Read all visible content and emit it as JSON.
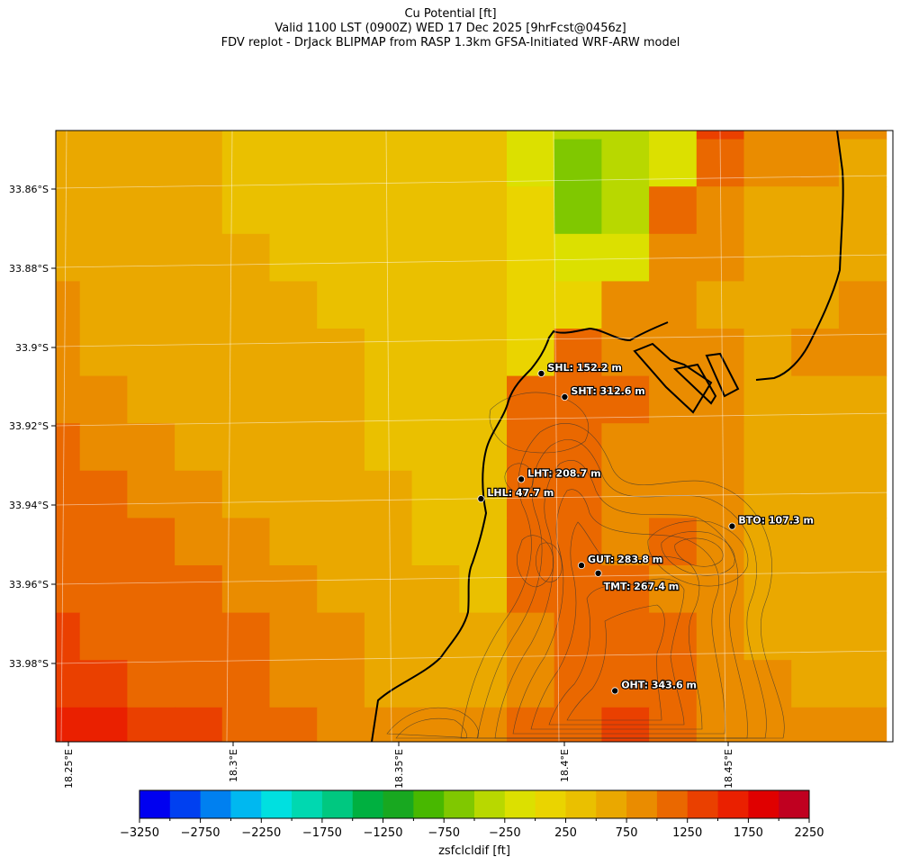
{
  "title": {
    "line1": "Cu Potential [ft]",
    "line2": "Valid 1100 LST (0900Z) WED 17 Dec 2025 [9hrFcst@0456z]",
    "line3": "FDV replot - DrJack BLIPMAP from RASP 1.3km GFSA-Initiated WRF-ARW model"
  },
  "chart_data": {
    "type": "heatmap",
    "variable": "zsfclcldif",
    "colorbar_label": "zsfclcldif [ft]",
    "colorbar_min": -3250,
    "colorbar_max": 2250,
    "colorbar_step": 250,
    "colorbar_ticks": [
      "−3250",
      "−2750",
      "−2250",
      "−1750",
      "−1250",
      "−750",
      "−250",
      "250",
      "750",
      "1250",
      "1750",
      "2250"
    ],
    "colorbar_colors": [
      "#0000f0",
      "#0040f0",
      "#0080f0",
      "#00b8f0",
      "#00e0e0",
      "#00d8b0",
      "#00c880",
      "#00b040",
      "#18a820",
      "#48b800",
      "#80c800",
      "#b8d800",
      "#dce000",
      "#ead400",
      "#eac000",
      "#eaa800",
      "#ea8c00",
      "#ea6800",
      "#ea4000",
      "#ea2000",
      "#e00000",
      "#c00020"
    ],
    "lat_ticks": [
      "33.86°S",
      "33.88°S",
      "33.9°S",
      "33.92°S",
      "33.94°S",
      "33.96°S",
      "33.98°S"
    ],
    "lon_ticks": [
      "18.25°E",
      "18.3°E",
      "18.35°E",
      "18.4°E",
      "18.45°E"
    ],
    "grid_values": [
      [
        500,
        500,
        500,
        500,
        400,
        400,
        250,
        250,
        250,
        250,
        -100,
        -400,
        -500,
        -150,
        1250,
        750,
        750,
        750
      ],
      [
        500,
        500,
        500,
        500,
        400,
        400,
        250,
        250,
        250,
        250,
        -150,
        -600,
        -400,
        -100,
        1200,
        750,
        750,
        600
      ],
      [
        700,
        500,
        500,
        500,
        400,
        400,
        400,
        250,
        250,
        250,
        0,
        -600,
        -400,
        1000,
        750,
        500,
        500,
        500
      ],
      [
        700,
        700,
        500,
        500,
        500,
        400,
        400,
        400,
        250,
        250,
        0,
        -250,
        -100,
        750,
        750,
        500,
        500,
        700
      ],
      [
        800,
        700,
        700,
        500,
        500,
        500,
        400,
        400,
        400,
        250,
        100,
        100,
        750,
        750,
        500,
        500,
        500,
        750
      ],
      [
        800,
        700,
        700,
        700,
        500,
        500,
        500,
        400,
        400,
        250,
        100,
        1000,
        750,
        750,
        750,
        700,
        750,
        750
      ],
      [
        900,
        800,
        700,
        700,
        700,
        500,
        500,
        400,
        400,
        250,
        1100,
        1100,
        1000,
        750,
        750,
        700,
        700,
        700
      ],
      [
        1000,
        900,
        800,
        700,
        700,
        600,
        500,
        400,
        400,
        250,
        1100,
        1100,
        900,
        900,
        750,
        700,
        700,
        700
      ],
      [
        1100,
        1000,
        900,
        800,
        700,
        700,
        500,
        500,
        400,
        250,
        1100,
        1000,
        900,
        900,
        750,
        700,
        600,
        600
      ],
      [
        1100,
        1000,
        1000,
        900,
        800,
        700,
        600,
        500,
        400,
        250,
        1000,
        1000,
        900,
        1000,
        750,
        700,
        600,
        500
      ],
      [
        1200,
        1100,
        1100,
        1000,
        900,
        800,
        700,
        600,
        500,
        400,
        1000,
        1100,
        1100,
        900,
        900,
        700,
        600,
        500
      ],
      [
        1300,
        1200,
        1200,
        1100,
        1000,
        900,
        800,
        700,
        600,
        500,
        900,
        1100,
        1100,
        1000,
        900,
        700,
        500,
        500
      ],
      [
        1400,
        1300,
        1200,
        1100,
        1000,
        900,
        800,
        700,
        600,
        600,
        900,
        1200,
        1200,
        1000,
        900,
        800,
        700,
        700
      ],
      [
        1600,
        1500,
        1400,
        1300,
        1100,
        1000,
        900,
        800,
        800,
        900,
        1100,
        1200,
        1300,
        1000,
        900,
        900,
        800,
        800
      ]
    ],
    "stations": [
      {
        "name": "SHL: 152.2 m",
        "lon": 18.393,
        "lat": -33.908
      },
      {
        "name": "SHT: 312.6 m",
        "lon": 18.4,
        "lat": -33.914
      },
      {
        "name": "LHT: 208.7 m",
        "lon": 18.387,
        "lat": -33.935
      },
      {
        "name": "LHL: 47.7 m",
        "lon": 18.375,
        "lat": -33.94
      },
      {
        "name": "BTO: 107.3 m",
        "lon": 18.45,
        "lat": -33.947
      },
      {
        "name": "GUT: 283.8 m",
        "lon": 18.405,
        "lat": -33.957
      },
      {
        "name": "TMT: 267.4 m",
        "lon": 18.41,
        "lat": -33.959
      },
      {
        "name": "OHT: 343.6 m",
        "lon": 18.415,
        "lat": -33.989
      }
    ]
  }
}
